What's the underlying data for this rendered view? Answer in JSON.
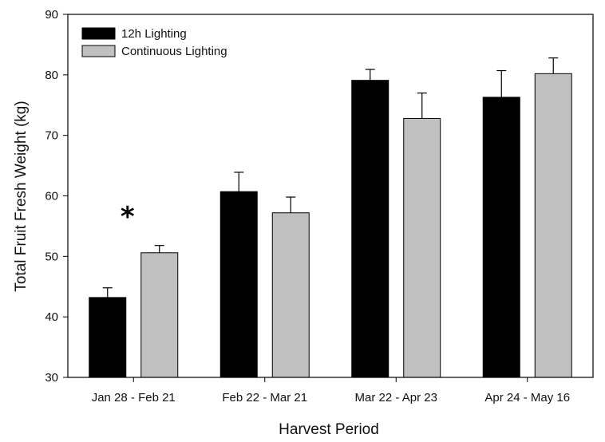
{
  "chart_data": {
    "type": "bar",
    "title": "",
    "xlabel": "Harvest Period",
    "ylabel": "Total Fruit Fresh Weight (kg)",
    "ylim": [
      30,
      90
    ],
    "yticks": [
      30,
      40,
      50,
      60,
      70,
      80,
      90
    ],
    "grid": false,
    "legend_position": "top-left",
    "categories": [
      "Jan 28 - Feb 21",
      "Feb 22 - Mar 21",
      "Mar 22 - Apr 23",
      "Apr 24 - May 16"
    ],
    "series": [
      {
        "name": "12h Lighting",
        "color": "#000000",
        "values": [
          43.2,
          60.7,
          79.1,
          76.3
        ],
        "error": [
          1.6,
          3.2,
          1.8,
          4.4
        ]
      },
      {
        "name": "Continuous Lighting",
        "color": "#c0c0c0",
        "values": [
          50.6,
          57.2,
          72.8,
          80.2
        ],
        "error": [
          1.2,
          2.6,
          4.2,
          2.6
        ]
      }
    ],
    "annotations": [
      {
        "text": "*",
        "category_index": 0
      }
    ]
  }
}
